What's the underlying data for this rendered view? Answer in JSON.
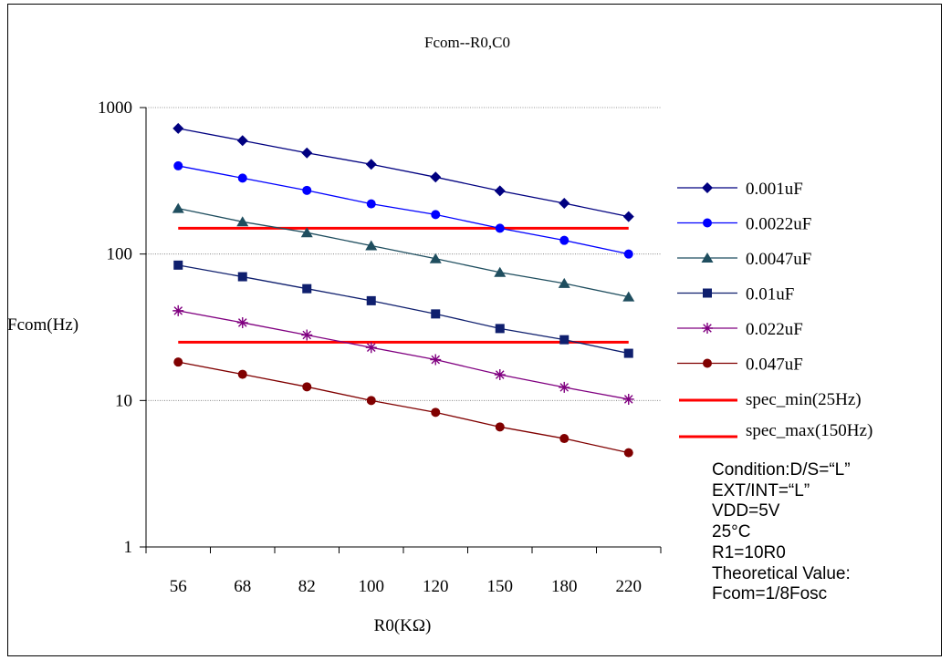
{
  "chart_data": {
    "type": "line",
    "title": "Fcom--R0,C0",
    "xlabel": "R0(KΩ)",
    "ylabel": "Fcom(Hz)",
    "y_scale": "log",
    "ylim": [
      1,
      1000
    ],
    "y_ticks": [
      "1",
      "10",
      "100",
      "1000"
    ],
    "categories": [
      "56",
      "68",
      "82",
      "100",
      "120",
      "150",
      "180",
      "220"
    ],
    "grid": "horizontal dotted at 10, 100, 1000",
    "legend_position": "right",
    "series": [
      {
        "name": "0.001uF",
        "color": "#000080",
        "marker": "diamond",
        "values": [
          720,
          595,
          490,
          410,
          335,
          270,
          222,
          180
        ]
      },
      {
        "name": "0.0022uF",
        "color": "#0000FF",
        "marker": "circle",
        "values": [
          400,
          330,
          272,
          220,
          186,
          150,
          124,
          100
        ]
      },
      {
        "name": "0.0047uF",
        "color": "#1F4E5F",
        "marker": "triangle",
        "values": [
          205,
          166,
          140,
          114,
          93,
          75,
          63,
          51
        ]
      },
      {
        "name": "0.01uF",
        "color": "#0F1F6E",
        "marker": "square",
        "values": [
          84,
          70,
          58,
          48,
          39,
          31,
          26,
          21
        ]
      },
      {
        "name": "0.022uF",
        "color": "#800080",
        "marker": "star",
        "values": [
          41,
          34,
          28,
          23,
          19,
          15,
          12.3,
          10.2
        ]
      },
      {
        "name": "0.047uF",
        "color": "#800000",
        "marker": "circle",
        "values": [
          18.3,
          15.1,
          12.4,
          10.0,
          8.3,
          6.6,
          5.5,
          4.4
        ]
      }
    ],
    "reference_lines": [
      {
        "name": "spec_min(25Hz)",
        "value": 25,
        "color": "#FF0000"
      },
      {
        "name": "spec_max(150Hz)",
        "value": 150,
        "color": "#FF0000"
      }
    ],
    "annotation": [
      "Condition:D/S=“L”",
      "EXT/INT=“L”",
      "VDD=5V",
      "25°C",
      "R1=10R0",
      "Theoretical Value:",
      "Fcom=1/8Fosc"
    ]
  }
}
